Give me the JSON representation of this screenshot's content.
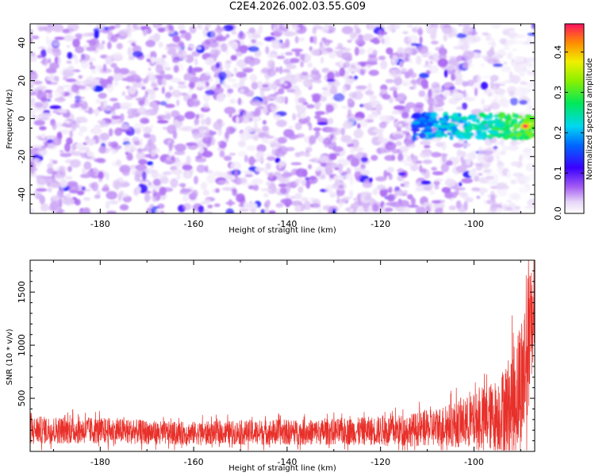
{
  "title": "C2E4.2026.002.03.55.G09",
  "chart_data": [
    {
      "type": "heatmap",
      "xlabel": "Height of straight line (km)",
      "ylabel": "Frequency (Hz)",
      "xlim": [
        -195,
        -87
      ],
      "ylim": [
        -50,
        50
      ],
      "xticks": [
        -180,
        -160,
        -140,
        -120,
        -100
      ],
      "yticks": [
        -40,
        -20,
        0,
        20,
        40
      ],
      "colorbar": {
        "label": "Normalized spectral amplitude",
        "range": [
          0,
          0.47
        ],
        "ticks": [
          0.0,
          0.1,
          0.2,
          0.3,
          0.4
        ]
      },
      "features": [
        {
          "label": "signal band",
          "x_range": [
            -113,
            -87
          ],
          "freq_center": -4,
          "freq_width": 8,
          "peak_amplitude": 0.45,
          "peak_height": -89
        }
      ],
      "background_amplitude": 0.05
    },
    {
      "type": "line",
      "xlabel": "Height of straight line (km)",
      "ylabel": "SNR (10 * v/v)",
      "xlim": [
        -195,
        -87
      ],
      "ylim": [
        0,
        1800
      ],
      "xticks": [
        -180,
        -160,
        -140,
        -120,
        -100
      ],
      "yticks": [
        500,
        1000,
        1500
      ],
      "series": [
        {
          "name": "SNR",
          "color": "#e8302a",
          "x": [
            -195,
            -185,
            -175,
            -165,
            -155,
            -145,
            -135,
            -125,
            -115,
            -110,
            -105,
            -100,
            -95,
            -92,
            -90,
            -89,
            -88,
            -87
          ],
          "y_mean": [
            200,
            200,
            190,
            170,
            175,
            180,
            180,
            190,
            200,
            215,
            250,
            280,
            340,
            450,
            620,
            820,
            1100,
            1500
          ],
          "y_spread": [
            130,
            130,
            120,
            110,
            110,
            120,
            120,
            130,
            150,
            170,
            210,
            260,
            350,
            500,
            650,
            750,
            650,
            400
          ],
          "peak": {
            "x": -88,
            "y": 1650
          }
        }
      ]
    }
  ]
}
